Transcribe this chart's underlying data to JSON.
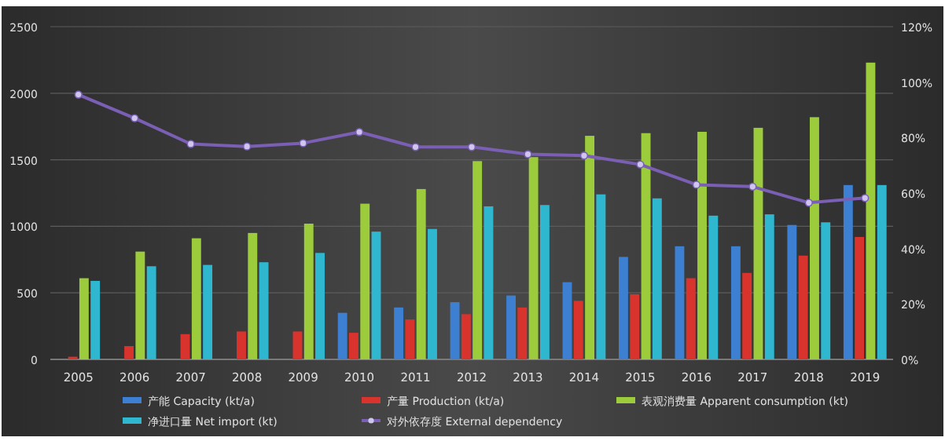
{
  "chart_data": {
    "type": "bar",
    "categories": [
      "2005",
      "2006",
      "2007",
      "2008",
      "2009",
      "2010",
      "2011",
      "2012",
      "2013",
      "2014",
      "2015",
      "2016",
      "2017",
      "2018",
      "2019"
    ],
    "series": [
      {
        "name": "产能 Capacity (kt/a)",
        "color": "#3d7fd0",
        "values": [
          null,
          null,
          null,
          null,
          null,
          350,
          390,
          430,
          480,
          580,
          770,
          850,
          850,
          1010,
          1310
        ]
      },
      {
        "name": "产量 Production (kt/a)",
        "color": "#d9332e",
        "values": [
          20,
          100,
          190,
          210,
          210,
          200,
          300,
          340,
          390,
          440,
          490,
          610,
          650,
          780,
          920
        ]
      },
      {
        "name": "表观消费量 Apparent consumption (kt)",
        "color": "#9ccc3c",
        "values": [
          610,
          810,
          910,
          950,
          1020,
          1170,
          1280,
          1490,
          1520,
          1680,
          1700,
          1710,
          1740,
          1820,
          2230
        ]
      },
      {
        "name": "净进口量 Net import (kt)",
        "color": "#2fb7d0",
        "values": [
          590,
          700,
          710,
          730,
          800,
          960,
          980,
          1150,
          1160,
          1240,
          1210,
          1080,
          1090,
          1030,
          1310
        ]
      },
      {
        "name": "对外依存度 External dependency",
        "color": "#7a5fb5",
        "type": "line",
        "axis": "y2",
        "marker": "circle",
        "values": [
          95.5,
          87,
          77.7,
          76.8,
          78,
          82,
          76.6,
          76.6,
          74,
          73.5,
          70.3,
          63,
          62.3,
          56.5,
          58.2
        ]
      }
    ],
    "ylim": [
      0,
      2500
    ],
    "yticks": [
      0,
      500,
      1000,
      1500,
      2000,
      2500
    ],
    "y2lim": [
      0,
      120
    ],
    "y2ticks": [
      {
        "value": 0,
        "label": "0%"
      },
      {
        "value": 20,
        "label": "20%"
      },
      {
        "value": 40,
        "label": "40%"
      },
      {
        "value": 60,
        "label": "60%"
      },
      {
        "value": 80,
        "label": "80%"
      },
      {
        "value": 100,
        "label": "100%"
      },
      {
        "value": 120,
        "label": "120%"
      }
    ],
    "grid": "y",
    "legend": "bottom"
  }
}
